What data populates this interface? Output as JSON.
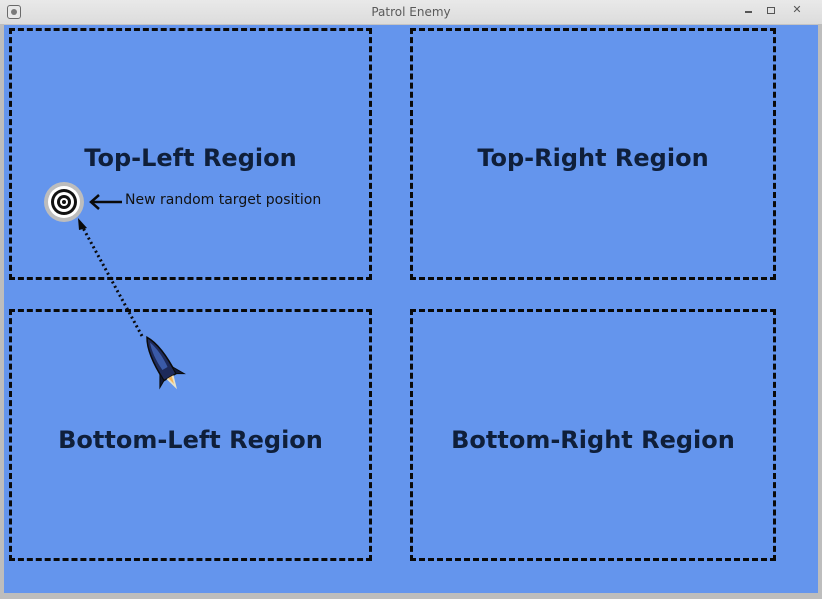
{
  "window": {
    "title": "Patrol Enemy",
    "minimize_icon": "minimize-icon",
    "maximize_icon": "maximize-icon",
    "close_icon": "close-icon"
  },
  "canvas": {
    "background_color": "#6495ed",
    "border_color": "#0a0a0a"
  },
  "regions": {
    "top_left": "Top-Left Region",
    "top_right": "Top-Right Region",
    "bottom_left": "Bottom-Left Region",
    "bottom_right": "Bottom-Right Region"
  },
  "annotation": {
    "label": "New random target position",
    "arrow_icon": "arrow-left-icon"
  },
  "sprites": {
    "target": "target-icon",
    "enemy_ship": "rocket-ship-icon"
  }
}
